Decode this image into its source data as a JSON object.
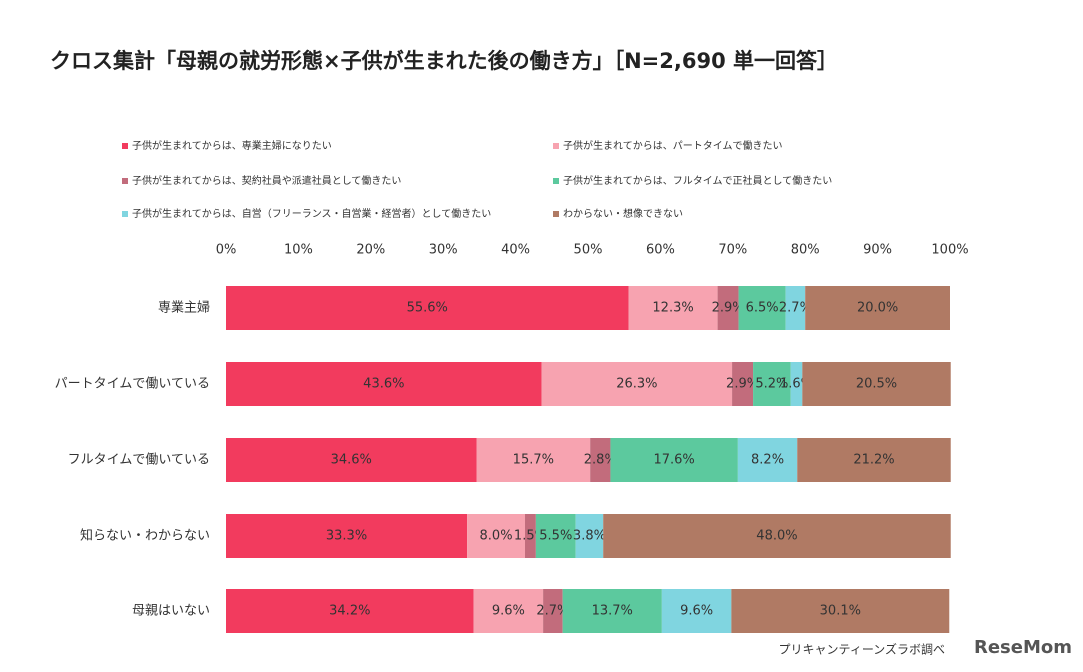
{
  "chart_data": {
    "type": "stacked-bar-horizontal",
    "title": "クロス集計「母親の就労形態×子供が生まれた後の働き方」［N=2,690 単一回答］",
    "categories": [
      "専業主婦",
      "パートタイムで働いている",
      "フルタイムで働いている",
      "知らない・わからない",
      "母親はいない"
    ],
    "series": [
      {
        "name": "子供が生まれてからは、専業主婦になりたい",
        "color": "#f23b5e",
        "values": [
          55.6,
          43.6,
          34.6,
          33.3,
          34.2
        ],
        "value_labels": [
          "55.6%",
          "43.6%",
          "34.6%",
          "33.3%",
          "34.2%"
        ]
      },
      {
        "name": "子供が生まれてからは、パートタイムで働きたい",
        "color": "#f7a3b0",
        "values": [
          12.3,
          26.3,
          15.7,
          8.0,
          9.6
        ],
        "value_labels": [
          "12.3%",
          "26.3%",
          "15.7%",
          "8.0%",
          "9.6%"
        ]
      },
      {
        "name": "子供が生まれてからは、契約社員や派遣社員として働きたい",
        "color": "#c26c7c",
        "values": [
          2.9,
          2.9,
          2.8,
          1.5,
          2.7
        ],
        "value_labels": [
          "2.9%",
          "2.9%",
          "2.8%",
          "1.5%",
          "2.7%"
        ]
      },
      {
        "name": "子供が生まれてからは、フルタイムで正社員として働きたい",
        "color": "#5cc99e",
        "values": [
          6.5,
          5.2,
          17.6,
          5.5,
          13.7
        ],
        "value_labels": [
          "6.5%",
          "5.2%",
          "17.6%",
          "5.5%",
          "13.7%"
        ]
      },
      {
        "name": "子供が生まれてからは、自営（フリーランス・自営業・経営者）として働きたい",
        "color": "#80d5e0",
        "values": [
          2.7,
          1.6,
          8.2,
          3.8,
          9.6
        ],
        "value_labels": [
          "2.7%",
          "1.6%",
          "8.2%",
          "3.8%",
          "9.6%"
        ]
      },
      {
        "name": "わからない・想像できない",
        "color": "#b07a64",
        "values": [
          20.0,
          20.5,
          21.2,
          48.0,
          30.1
        ],
        "value_labels": [
          "20.0%",
          "20.5%",
          "21.2%",
          "48.0%",
          "30.1%"
        ]
      }
    ],
    "xlim": [
      0,
      100
    ],
    "xticks": [
      {
        "value": 0,
        "label": "0%"
      },
      {
        "value": 10,
        "label": "10%"
      },
      {
        "value": 20,
        "label": "20%"
      },
      {
        "value": 30,
        "label": "30%"
      },
      {
        "value": 40,
        "label": "40%"
      },
      {
        "value": 50,
        "label": "50%"
      },
      {
        "value": 60,
        "label": "60%"
      },
      {
        "value": 70,
        "label": "70%"
      },
      {
        "value": 80,
        "label": "80%"
      },
      {
        "value": 90,
        "label": "90%"
      },
      {
        "value": 100,
        "label": "100%"
      }
    ],
    "source": "プリキャンティーンズラボ調べ",
    "logo": "ReseMom"
  }
}
